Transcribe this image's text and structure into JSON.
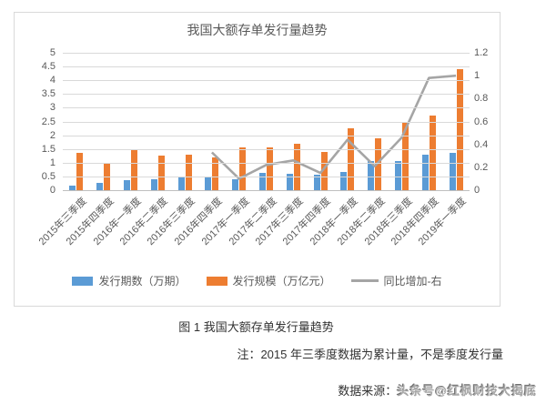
{
  "chart": {
    "title": "我国大额存单发行量趋势",
    "left_axis_ticks": [
      "5",
      "4.5",
      "4",
      "3.5",
      "3",
      "2.5",
      "2",
      "1.5",
      "1",
      "0.5",
      "0"
    ],
    "right_axis_ticks": [
      "1.2",
      "1",
      "0.8",
      "0.6",
      "0.4",
      "0.2",
      "0"
    ],
    "legend": [
      {
        "label": "发行期数（万期）",
        "color": "#5B9BD5",
        "type": "bar"
      },
      {
        "label": "发行规模（万亿元）",
        "color": "#ED7D31",
        "type": "bar"
      },
      {
        "label": "同比增加-右",
        "color": "#A5A5A5",
        "type": "line"
      }
    ]
  },
  "chart_data": {
    "type": "bar",
    "subtype": "grouped-bars-with-line",
    "title": "我国大额存单发行量趋势",
    "categories": [
      "2015年三季度",
      "2015年四季度",
      "2016年一季度",
      "2016年二季度",
      "2016年三季度",
      "2016年四季度",
      "2017年一季度",
      "2017年二季度",
      "2017年三季度",
      "2017年四季度",
      "2018年一季度",
      "2018年二季度",
      "2018年三季度",
      "2018年四季度",
      "2019年一季度"
    ],
    "series": [
      {
        "name": "发行期数（万期）",
        "type": "bar",
        "axis": "left",
        "color": "#5B9BD5",
        "values": [
          0.15,
          0.25,
          0.35,
          0.4,
          0.45,
          0.45,
          0.4,
          0.63,
          0.58,
          0.55,
          0.65,
          1.05,
          1.07,
          1.3,
          1.35
        ]
      },
      {
        "name": "发行规模（万亿元）",
        "type": "bar",
        "axis": "left",
        "color": "#ED7D31",
        "values": [
          1.35,
          0.95,
          1.45,
          1.25,
          1.3,
          1.2,
          1.55,
          1.55,
          1.7,
          1.4,
          2.25,
          1.9,
          2.45,
          2.7,
          4.4
        ]
      },
      {
        "name": "同比增加-右",
        "type": "line",
        "axis": "right",
        "color": "#A5A5A5",
        "values": [
          null,
          null,
          null,
          null,
          null,
          0.33,
          0.1,
          0.22,
          0.26,
          0.15,
          0.44,
          0.21,
          0.46,
          0.98,
          1.0
        ]
      }
    ],
    "left_ylim": [
      0,
      5
    ],
    "left_tick_step": 0.5,
    "right_ylim": [
      0,
      1.2
    ],
    "right_tick_step": 0.2,
    "grid": true,
    "legend_position": "bottom",
    "xlabel": "",
    "ylabel": ""
  },
  "caption": "图 1 我国大额存单发行量趋势",
  "note": "注：2015 年三季度数据为累计量，不是季度发行量",
  "source_label": "数据来源：",
  "source_watermark": "头条号@红枫财技大揭底",
  "colors": {
    "bar_blue": "#5B9BD5",
    "bar_orange": "#ED7D31",
    "line_gray": "#A5A5A5",
    "gridline": "#D9D9D9",
    "axis_text": "#595959",
    "body_text": "#333333",
    "background": "#FFFFFF"
  }
}
